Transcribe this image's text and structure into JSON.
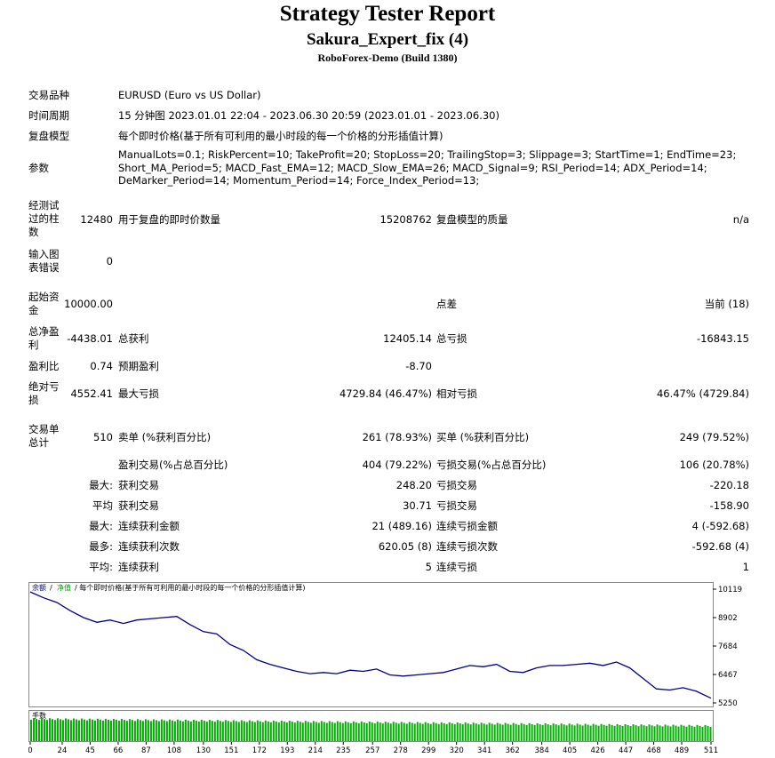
{
  "header": {
    "title": "Strategy Tester Report",
    "expert": "Sakura_Expert_fix (4)",
    "server": "RoboForex-Demo (Build 1380)"
  },
  "info": {
    "symbol_label": "交易品种",
    "symbol_value": "EURUSD (Euro vs US Dollar)",
    "period_label": "时间周期",
    "period_value": "15 分钟图 2023.01.01 22:04 - 2023.06.30 20:59 (2023.01.01 - 2023.06.30)",
    "model_label": "复盘模型",
    "model_value": "每个即时价格(基于所有可利用的最小时段的每一个价格的分形插值计算)",
    "params_label": "参数",
    "params_line1": "ManualLots=0.1; RiskPercent=10; TakeProfit=20; StopLoss=20; TrailingStop=3; Slippage=3; StartTime=1; EndTime=23;",
    "params_line2": "Short_MA_Period=5; MACD_Fast_EMA=12; MACD_Slow_EMA=26; MACD_Signal=9; RSI_Period=14; ADX_Period=14;",
    "params_line3": "DeMarker_Period=14; Momentum_Period=14; Force_Index_Period=13;"
  },
  "stats": {
    "bars_label": "经测试过的柱数",
    "bars_value": "12480",
    "ticks_label": "用于复盘的即时价数量",
    "ticks_value": "15208762",
    "quality_label": "复盘模型的质量",
    "quality_value": "n/a",
    "errors_label": "输入图表错误",
    "errors_value": "0",
    "deposit_label": "起始资金",
    "deposit_value": "10000.00",
    "spread_label": "点差",
    "spread_value": "当前 (18)",
    "netprofit_label": "总净盈利",
    "netprofit_value": "-4438.01",
    "grossprofit_label": "总获利",
    "grossprofit_value": "12405.14",
    "grossloss_label": "总亏损",
    "grossloss_value": "-16843.15",
    "pf_label": "盈利比",
    "pf_value": "0.74",
    "payoff_label": "预期盈利",
    "payoff_value": "-8.70",
    "absdd_label": "绝对亏损",
    "absdd_value": "4552.41",
    "maxdd_label": "最大亏损",
    "maxdd_value": "4729.84 (46.47%)",
    "reldd_label": "相对亏损",
    "reldd_value": "46.47% (4729.84)",
    "trades_label": "交易单总计",
    "trades_value": "510",
    "short_label": "卖单 (%获利百分比)",
    "short_value": "261 (78.93%)",
    "long_label": "买单 (%获利百分比)",
    "long_value": "249 (79.52%)",
    "profit_trades_label": "盈利交易(%占总百分比)",
    "profit_trades_value": "404 (79.22%)",
    "loss_trades_label": "亏损交易(%占总百分比)",
    "loss_trades_value": "106 (20.78%)",
    "max_prefix": "最大:",
    "largest_profit_label": "获利交易",
    "largest_profit_value": "248.20",
    "largest_loss_label": "亏损交易",
    "largest_loss_value": "-220.18",
    "avg_prefix": "平均",
    "avg_profit_label": "获利交易",
    "avg_profit_value": "30.71",
    "avg_loss_label": "亏损交易",
    "avg_loss_value": "-158.90",
    "max2_prefix": "最大:",
    "max_consec_wins_label": "连续获利金额",
    "max_consec_wins_value": "21 (489.16)",
    "max_consec_losses_label": "连续亏损金额",
    "max_consec_losses_value": "4 (-592.68)",
    "most_prefix": "最多:",
    "max_consec_profit_label": "连续获利次数",
    "max_consec_profit_value": "620.05 (8)",
    "max_consec_loss_label": "连续亏损次数",
    "max_consec_loss_value": "-592.68 (4)",
    "avg2_prefix": "平均:",
    "avg_consec_wins_label": "连续获利",
    "avg_consec_wins_value": "5",
    "avg_consec_losses_label": "连续亏损",
    "avg_consec_losses_value": "1"
  },
  "chart_data": {
    "type": "line",
    "legend": "余额 / 净值 / 每个即时价格(基于所有可利用的最小时段的每一个价格的分形插值计算)",
    "legend_balance": "余额",
    "legend_equity": "净值",
    "legend_rest": "/ 每个即时价格(基于所有可利用的最小时段的每一个价格的分形插值计算)",
    "volume_label": "手数",
    "y_ticks": [
      "10119",
      "8902",
      "7684",
      "6467",
      "5250"
    ],
    "x_ticks": [
      "0",
      "24",
      "45",
      "66",
      "87",
      "108",
      "130",
      "151",
      "172",
      "193",
      "214",
      "235",
      "257",
      "278",
      "299",
      "320",
      "341",
      "362",
      "384",
      "405",
      "426",
      "447",
      "468",
      "489",
      "511"
    ],
    "xlim": [
      0,
      511
    ],
    "ylim": [
      5250,
      10119
    ],
    "balance_color": "#00008b",
    "volume_color": "#00b000",
    "series": [
      {
        "x": [
          0,
          10,
          20,
          30,
          40,
          50,
          60,
          70,
          80,
          90,
          100,
          110,
          120,
          130,
          140,
          150,
          160,
          170,
          180,
          190,
          200,
          210,
          220,
          230,
          240,
          250,
          260,
          270,
          280,
          290,
          300,
          310,
          320,
          330,
          340,
          350,
          360,
          370,
          380,
          390,
          400,
          410,
          420,
          430,
          440,
          450,
          460,
          470,
          480,
          490,
          500,
          511
        ],
        "values": [
          10000,
          9750,
          9550,
          9200,
          8900,
          8700,
          8800,
          8650,
          8800,
          8850,
          8900,
          8950,
          8600,
          8300,
          8200,
          7750,
          7500,
          7100,
          6900,
          6750,
          6600,
          6500,
          6550,
          6500,
          6650,
          6600,
          6700,
          6450,
          6400,
          6450,
          6500,
          6550,
          6700,
          6850,
          6800,
          6900,
          6600,
          6550,
          6750,
          6850,
          6850,
          6900,
          6950,
          6850,
          7000,
          6750,
          6300,
          5850,
          5800,
          5900,
          5750,
          5450
        ]
      }
    ]
  }
}
